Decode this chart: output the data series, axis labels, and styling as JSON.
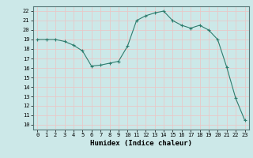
{
  "x": [
    0,
    1,
    2,
    3,
    4,
    5,
    6,
    7,
    8,
    9,
    10,
    11,
    12,
    13,
    14,
    15,
    16,
    17,
    18,
    19,
    20,
    21,
    22,
    23
  ],
  "y": [
    19.0,
    19.0,
    19.0,
    18.8,
    18.4,
    17.8,
    16.2,
    16.3,
    16.5,
    16.7,
    18.3,
    21.0,
    21.5,
    21.8,
    22.0,
    21.0,
    20.5,
    20.2,
    20.5,
    20.0,
    19.0,
    16.1,
    12.8,
    10.5
  ],
  "line_color": "#2e7d6e",
  "bg_color": "#cce8e8",
  "grid_color": "#e8c8c8",
  "text_color": "#000000",
  "xlabel": "Humidex (Indice chaleur)",
  "ylabel_ticks": [
    10,
    11,
    12,
    13,
    14,
    15,
    16,
    17,
    18,
    19,
    20,
    21,
    22
  ],
  "ylim": [
    9.5,
    22.5
  ],
  "xlim": [
    -0.5,
    23.5
  ]
}
